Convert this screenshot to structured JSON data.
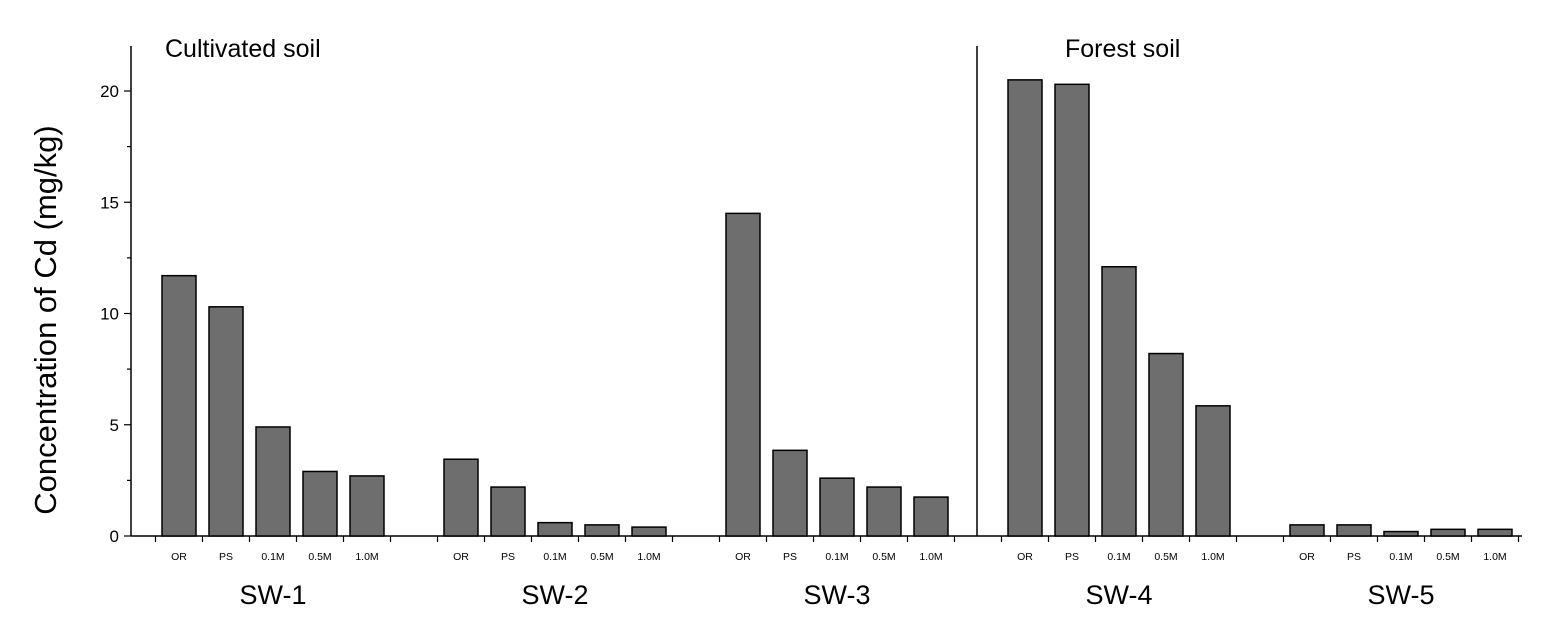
{
  "chart_data": {
    "type": "bar",
    "ylabel": "Concentration of Cd (mg/kg)",
    "ylim": [
      0,
      22
    ],
    "yticks": [
      0,
      5,
      10,
      15,
      20
    ],
    "grid": false,
    "groups": [
      {
        "name": "SW-1",
        "categories": [
          "OR",
          "PS",
          "0.1M",
          "0.5M",
          "1.0M"
        ],
        "values": [
          11.7,
          10.3,
          4.9,
          2.9,
          2.7
        ]
      },
      {
        "name": "SW-2",
        "categories": [
          "OR",
          "PS",
          "0.1M",
          "0.5M",
          "1.0M"
        ],
        "values": [
          3.45,
          2.2,
          0.6,
          0.5,
          0.4
        ]
      },
      {
        "name": "SW-3",
        "categories": [
          "OR",
          "PS",
          "0.1M",
          "0.5M",
          "1.0M"
        ],
        "values": [
          14.5,
          3.85,
          2.6,
          2.2,
          1.75
        ]
      },
      {
        "name": "SW-4",
        "categories": [
          "OR",
          "PS",
          "0.1M",
          "0.5M",
          "1.0M"
        ],
        "values": [
          20.5,
          20.3,
          12.1,
          8.2,
          5.85
        ]
      },
      {
        "name": "SW-5",
        "categories": [
          "OR",
          "PS",
          "0.1M",
          "0.5M",
          "1.0M"
        ],
        "values": [
          0.5,
          0.5,
          0.2,
          0.3,
          0.3
        ]
      }
    ],
    "annotations": {
      "left_region": "Cultivated soil",
      "right_region": "Forest soil"
    }
  }
}
